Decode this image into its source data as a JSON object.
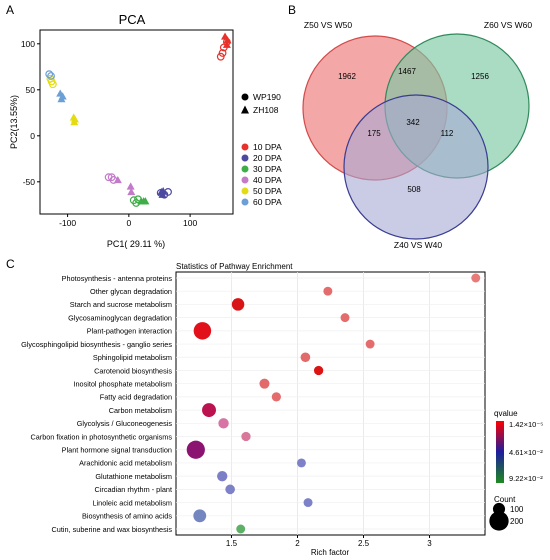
{
  "panels": {
    "a": "A",
    "b": "B",
    "c": "C"
  },
  "chart_data": [
    {
      "type": "scatter",
      "title": "PCA",
      "xlabel": "PC1( 29.11 %)",
      "ylabel": "PC2(13.55%)",
      "xlim": [
        -145,
        170
      ],
      "ylim": [
        -85,
        115
      ],
      "xticks": [
        -100,
        0,
        100
      ],
      "yticks": [
        -50,
        0,
        50,
        100
      ],
      "shape_legend": [
        {
          "label": "WP190",
          "shape": "circle"
        },
        {
          "label": "ZH108",
          "shape": "triangle"
        }
      ],
      "series": [
        {
          "name": "10 DPA",
          "color": "#e8312a",
          "points": [
            {
              "x": 150,
              "y": 86,
              "shape": "circle"
            },
            {
              "x": 153,
              "y": 90,
              "shape": "circle"
            },
            {
              "x": 155,
              "y": 96,
              "shape": "circle"
            },
            {
              "x": 160,
              "y": 102,
              "shape": "circle"
            },
            {
              "x": 157,
              "y": 108,
              "shape": "triangle"
            },
            {
              "x": 161,
              "y": 104,
              "shape": "triangle"
            },
            {
              "x": 160,
              "y": 99,
              "shape": "triangle"
            }
          ]
        },
        {
          "name": "20 DPA",
          "color": "#4b4aa0",
          "points": [
            {
              "x": 52,
              "y": -62,
              "shape": "circle"
            },
            {
              "x": 58,
              "y": -64,
              "shape": "circle"
            },
            {
              "x": 64,
              "y": -61,
              "shape": "circle"
            },
            {
              "x": 53,
              "y": -61,
              "shape": "triangle"
            },
            {
              "x": 56,
              "y": -60,
              "shape": "triangle"
            },
            {
              "x": 55,
              "y": -64,
              "shape": "triangle"
            }
          ]
        },
        {
          "name": "30 DPA",
          "color": "#3fae49",
          "points": [
            {
              "x": 8,
              "y": -70,
              "shape": "circle"
            },
            {
              "x": 12,
              "y": -73,
              "shape": "circle"
            },
            {
              "x": 15,
              "y": -69,
              "shape": "circle"
            },
            {
              "x": 20,
              "y": -71,
              "shape": "triangle"
            },
            {
              "x": 24,
              "y": -71,
              "shape": "triangle"
            },
            {
              "x": 27,
              "y": -71,
              "shape": "triangle"
            }
          ]
        },
        {
          "name": "40 DPA",
          "color": "#c27ac9",
          "points": [
            {
              "x": -33,
              "y": -45,
              "shape": "circle"
            },
            {
              "x": -28,
              "y": -45,
              "shape": "circle"
            },
            {
              "x": -25,
              "y": -48,
              "shape": "circle"
            },
            {
              "x": -18,
              "y": -48,
              "shape": "triangle"
            },
            {
              "x": 3,
              "y": -55,
              "shape": "triangle"
            },
            {
              "x": 4,
              "y": -61,
              "shape": "triangle"
            }
          ]
        },
        {
          "name": "50 DPA",
          "color": "#e4dc12",
          "points": [
            {
              "x": -126,
              "y": 59,
              "shape": "circle"
            },
            {
              "x": -124,
              "y": 56,
              "shape": "circle"
            },
            {
              "x": -128,
              "y": 62,
              "shape": "circle"
            },
            {
              "x": -90,
              "y": 20,
              "shape": "triangle"
            },
            {
              "x": -89,
              "y": 15,
              "shape": "triangle"
            },
            {
              "x": -88,
              "y": 18,
              "shape": "triangle"
            }
          ]
        },
        {
          "name": "60 DPA",
          "color": "#6b9fd6",
          "points": [
            {
              "x": -130,
              "y": 67,
              "shape": "circle"
            },
            {
              "x": -127,
              "y": 65,
              "shape": "circle"
            },
            {
              "x": -112,
              "y": 46,
              "shape": "triangle"
            },
            {
              "x": -110,
              "y": 40,
              "shape": "triangle"
            },
            {
              "x": -108,
              "y": 43,
              "shape": "triangle"
            }
          ]
        }
      ]
    },
    {
      "type": "venn",
      "sets": [
        {
          "name": "Z50 VS W50",
          "color": "#f08a8a"
        },
        {
          "name": "Z60 VS W60",
          "color": "#7cc8a3"
        },
        {
          "name": "Z40 VS W40",
          "color": "#a6a8d4"
        }
      ],
      "regions": {
        "only_z50": 1962,
        "only_z60": 1256,
        "only_z40": 508,
        "z50_z60": 1467,
        "z50_z40": 175,
        "z60_z40": 112,
        "all": 342
      }
    },
    {
      "type": "scatter",
      "title": "Statistics of Pathway Enrichment",
      "xlabel": "Rich factor",
      "xlim": [
        1.08,
        3.42
      ],
      "xticks": [
        1.5,
        2,
        2.5,
        3
      ],
      "xtick_labels": [
        "1.5",
        "2",
        "2.5",
        "3"
      ],
      "color_legend": {
        "title": "qvalue",
        "labels": [
          "1.42×10⁻⁵",
          "4.61×10⁻²",
          "9.22×10⁻²"
        ],
        "colors": [
          "#ff0000",
          "#1e1e9e",
          "#1f8a1f"
        ]
      },
      "size_legend": {
        "title": "Count",
        "values": [
          100,
          200
        ]
      },
      "rows": [
        {
          "label": "Photosynthesis - antenna proteins",
          "x": 3.35,
          "count": 55,
          "color": "#e87a7a"
        },
        {
          "label": "Other glycan degradation",
          "x": 2.23,
          "count": 55,
          "color": "#e46c6c"
        },
        {
          "label": "Starch and sucrose metabolism",
          "x": 1.55,
          "count": 105,
          "color": "#d81416"
        },
        {
          "label": "Glycosaminoglycan degradation",
          "x": 2.36,
          "count": 55,
          "color": "#e46c6c"
        },
        {
          "label": "Plant-pathogen interaction",
          "x": 1.28,
          "count": 175,
          "color": "#e2101a"
        },
        {
          "label": "Glycosphingolipid biosynthesis - ganglio series",
          "x": 2.55,
          "count": 55,
          "color": "#e46c6c"
        },
        {
          "label": "Sphingolipid metabolism",
          "x": 2.06,
          "count": 65,
          "color": "#e26a6a"
        },
        {
          "label": "Carotenoid biosynthesis",
          "x": 2.16,
          "count": 60,
          "color": "#dc1414"
        },
        {
          "label": "Inositol phosphate metabolism",
          "x": 1.75,
          "count": 70,
          "color": "#e26a6a"
        },
        {
          "label": "Fatty acid degradation",
          "x": 1.84,
          "count": 60,
          "color": "#e46c6c"
        },
        {
          "label": "Carbon metabolism",
          "x": 1.33,
          "count": 125,
          "color": "#bb1250"
        },
        {
          "label": "Glycolysis / Gluconeogenesis",
          "x": 1.44,
          "count": 75,
          "color": "#d873a6"
        },
        {
          "label": "Carbon fixation in photosynthetic organisms",
          "x": 1.61,
          "count": 60,
          "color": "#d8789b"
        },
        {
          "label": "Plant hormone signal transduction",
          "x": 1.23,
          "count": 185,
          "color": "#8a1470"
        },
        {
          "label": "Arachidonic acid metabolism",
          "x": 2.03,
          "count": 55,
          "color": "#7d82c8"
        },
        {
          "label": "Glutathione metabolism",
          "x": 1.43,
          "count": 75,
          "color": "#7b80c6"
        },
        {
          "label": "Circadian rhythm - plant",
          "x": 1.49,
          "count": 65,
          "color": "#7d82c8"
        },
        {
          "label": "Linoleic acid metabolism",
          "x": 2.08,
          "count": 55,
          "color": "#7d82c8"
        },
        {
          "label": "Biosynthesis of amino acids",
          "x": 1.26,
          "count": 110,
          "color": "#7386c0"
        },
        {
          "label": "Cutin, suberine and wax biosynthesis",
          "x": 1.57,
          "count": 55,
          "color": "#5fb067"
        }
      ]
    }
  ]
}
